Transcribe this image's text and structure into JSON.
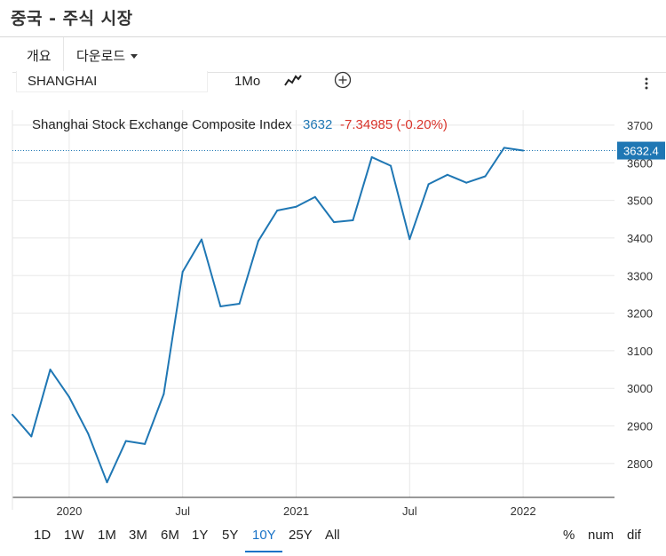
{
  "header": {
    "title": "중국 - 주식 시장"
  },
  "tabs": [
    {
      "label": "개요"
    },
    {
      "label": "다운로드"
    }
  ],
  "toolbar": {
    "symbol": "SHANGHAI",
    "interval": "1Mo",
    "chart_type_icon": "line-chart-icon",
    "compare_icon": "plus-circle-icon",
    "more_icon": "vertical-dots-icon"
  },
  "legend": {
    "name": "Shanghai Stock Exchange Composite Index",
    "last": "3632",
    "change": "-7.34985 (-0.20%)"
  },
  "colors": {
    "line": "#1f77b4",
    "down": "#d9342b",
    "label_bg": "#1f77b4",
    "active": "#1a73c7"
  },
  "range_buttons": [
    "1D",
    "1W",
    "1M",
    "3M",
    "6M",
    "1Y",
    "5Y",
    "10Y",
    "25Y",
    "All"
  ],
  "active_range": "10Y",
  "mode_buttons": [
    "%",
    "num",
    "dif"
  ],
  "chart_data": {
    "type": "line",
    "title": "Shanghai Stock Exchange Composite Index",
    "series": [
      {
        "name": "Shanghai Stock Exchange Composite Index",
        "x": [
          "2019-10",
          "2019-11",
          "2019-12",
          "2020-01",
          "2020-02",
          "2020-03",
          "2020-04",
          "2020-05",
          "2020-06",
          "2020-07",
          "2020-08",
          "2020-09",
          "2020-10",
          "2020-11",
          "2020-12",
          "2021-01",
          "2021-02",
          "2021-03",
          "2021-04",
          "2021-05",
          "2021-06",
          "2021-07",
          "2021-08",
          "2021-09",
          "2021-10",
          "2021-11",
          "2021-12",
          "2022-01"
        ],
        "values": [
          2930,
          2872,
          3050,
          2977,
          2880,
          2750,
          2860,
          2852,
          2985,
          3310,
          3396,
          3218,
          3225,
          3392,
          3473,
          3483,
          3509,
          3442,
          3447,
          3615,
          3592,
          3397,
          3543,
          3568,
          3547,
          3564,
          3640,
          3632.4
        ]
      }
    ],
    "x_tick_labels": [
      "2020",
      "Jul",
      "2021",
      "Jul",
      "2022"
    ],
    "y_ticks": [
      2800,
      2900,
      3000,
      3100,
      3200,
      3300,
      3400,
      3500,
      3600,
      3700
    ],
    "ylim": [
      2710,
      3740
    ],
    "last_value_label": "3632.4",
    "grid": true
  }
}
